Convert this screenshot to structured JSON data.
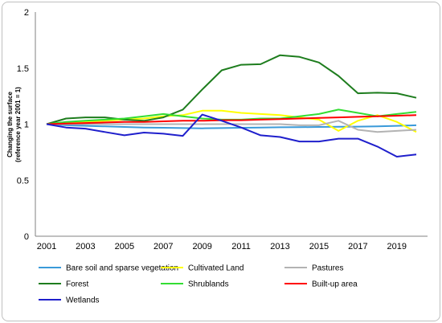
{
  "chart_data": {
    "type": "line",
    "title": "",
    "xlabel": "",
    "ylabel": [
      "Changing the surface",
      "(reference year 2001 = 1)"
    ],
    "x": [
      2001,
      2002,
      2003,
      2004,
      2005,
      2006,
      2007,
      2008,
      2009,
      2010,
      2011,
      2012,
      2013,
      2014,
      2015,
      2016,
      2017,
      2018,
      2019,
      2020
    ],
    "x_ticks": [
      2001,
      2003,
      2005,
      2007,
      2009,
      2011,
      2013,
      2015,
      2017,
      2019
    ],
    "ylim": [
      0,
      2
    ],
    "y_ticks": [
      0,
      0.5,
      1,
      1.5,
      2
    ],
    "y_tick_labels": [
      "0",
      "0.5",
      "1",
      "1.5",
      "2"
    ],
    "grid": false,
    "legend_position": "bottom",
    "series": [
      {
        "name": "Bare soil and sparse vegetation",
        "color": "#3a9ad9",
        "values": [
          1.0,
          0.99,
          0.985,
          0.98,
          0.975,
          0.97,
          0.968,
          0.965,
          0.963,
          0.965,
          0.968,
          0.97,
          0.972,
          0.973,
          0.975,
          0.977,
          0.978,
          0.98,
          0.985,
          0.99
        ]
      },
      {
        "name": "Cultivated Land",
        "color": "#ffff00",
        "values": [
          1.0,
          1.01,
          1.02,
          1.03,
          1.04,
          1.05,
          1.07,
          1.08,
          1.12,
          1.12,
          1.1,
          1.09,
          1.08,
          1.06,
          1.04,
          0.94,
          1.03,
          1.08,
          1.02,
          0.93
        ]
      },
      {
        "name": "Pastures",
        "color": "#b3b3b3",
        "values": [
          1.0,
          1.0,
          1.0,
          1.0,
          1.0,
          1.0,
          1.0,
          1.0,
          1.0,
          1.0,
          1.0,
          1.0,
          1.0,
          0.99,
          0.99,
          1.03,
          0.95,
          0.93,
          0.94,
          0.95
        ]
      },
      {
        "name": "Forest",
        "color": "#1e7d1e",
        "values": [
          1.0,
          1.05,
          1.06,
          1.06,
          1.04,
          1.03,
          1.06,
          1.13,
          1.31,
          1.48,
          1.53,
          1.535,
          1.615,
          1.6,
          1.55,
          1.43,
          1.275,
          1.28,
          1.275,
          1.235
        ]
      },
      {
        "name": "Shrublands",
        "color": "#33dd33",
        "values": [
          1.0,
          1.02,
          1.03,
          1.04,
          1.05,
          1.07,
          1.09,
          1.07,
          1.05,
          1.04,
          1.04,
          1.05,
          1.05,
          1.07,
          1.09,
          1.13,
          1.1,
          1.07,
          1.09,
          1.11
        ]
      },
      {
        "name": "Built-up area",
        "color": "#ff0000",
        "values": [
          1.0,
          1.005,
          1.01,
          1.015,
          1.02,
          1.02,
          1.025,
          1.03,
          1.03,
          1.035,
          1.035,
          1.04,
          1.045,
          1.05,
          1.055,
          1.06,
          1.065,
          1.07,
          1.075,
          1.08
        ]
      },
      {
        "name": "Wetlands",
        "color": "#1f1fcc",
        "values": [
          1.0,
          0.97,
          0.96,
          0.93,
          0.9,
          0.925,
          0.915,
          0.895,
          1.085,
          1.03,
          0.97,
          0.9,
          0.885,
          0.845,
          0.845,
          0.87,
          0.87,
          0.8,
          0.71,
          0.73
        ]
      }
    ]
  }
}
